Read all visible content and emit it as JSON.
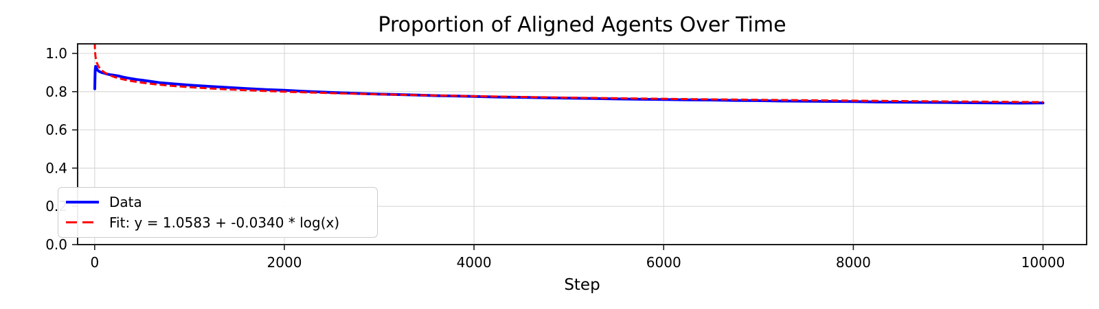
{
  "chart_data": {
    "type": "line",
    "title": "Proportion of Aligned Agents Over Time",
    "xlabel": "Step",
    "ylabel": "",
    "xlim": [
      -180,
      10460
    ],
    "ylim": [
      0,
      1.05
    ],
    "xticks": [
      0,
      2000,
      4000,
      6000,
      8000,
      10000
    ],
    "yticks": [
      0.0,
      0.2,
      0.4,
      0.6,
      0.8,
      1.0
    ],
    "grid": true,
    "legend_position": "lower left",
    "colors": {
      "data_line": "#0000ff",
      "fit_line": "#ff0000",
      "grid": "#d9d9d9",
      "spine": "#1a1a1a",
      "text": "#000000",
      "legend_border": "#cccccc"
    },
    "series": [
      {
        "name": "Data",
        "color": "#0000ff",
        "style": "solid",
        "x": [
          1,
          2,
          3,
          4,
          5,
          6,
          8,
          10,
          13,
          16,
          20,
          25,
          30,
          40,
          50,
          65,
          80,
          100,
          130,
          160,
          200,
          250,
          300,
          350,
          400,
          450,
          500,
          600,
          700,
          800,
          900,
          1000,
          1200,
          1400,
          1600,
          1800,
          2000,
          2200,
          2400,
          2600,
          2800,
          3000,
          3200,
          3400,
          3600,
          3800,
          4000,
          4250,
          4500,
          4750,
          5000,
          5250,
          5500,
          5750,
          6000,
          6250,
          6500,
          6750,
          7000,
          7250,
          7500,
          7750,
          8000,
          8250,
          8500,
          8750,
          9000,
          9250,
          9500,
          9750,
          10000
        ],
        "y": [
          0.815,
          0.842,
          0.866,
          0.888,
          0.905,
          0.916,
          0.928,
          0.932,
          0.931,
          0.928,
          0.922,
          0.917,
          0.913,
          0.908,
          0.905,
          0.902,
          0.899,
          0.897,
          0.892,
          0.889,
          0.886,
          0.882,
          0.876,
          0.871,
          0.867,
          0.863,
          0.86,
          0.853,
          0.846,
          0.842,
          0.838,
          0.834,
          0.828,
          0.822,
          0.816,
          0.811,
          0.807,
          0.802,
          0.798,
          0.794,
          0.79,
          0.787,
          0.785,
          0.782,
          0.779,
          0.777,
          0.775,
          0.772,
          0.77,
          0.768,
          0.766,
          0.764,
          0.762,
          0.76,
          0.759,
          0.757,
          0.756,
          0.754,
          0.753,
          0.751,
          0.75,
          0.749,
          0.748,
          0.746,
          0.745,
          0.744,
          0.743,
          0.742,
          0.741,
          0.74,
          0.741
        ]
      },
      {
        "name": "Fit: y = 1.0583 + -0.0340 * log(x)",
        "color": "#ff0000",
        "style": "dashed",
        "fit": {
          "intercept": 1.0583,
          "slope": -0.034,
          "form": "y = a + b * log(x)"
        },
        "x_range": [
          1,
          10000
        ]
      }
    ]
  }
}
